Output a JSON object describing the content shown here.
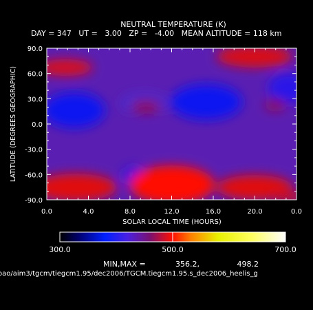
{
  "chart_data": {
    "type": "heatmap",
    "title": "NEUTRAL TEMPERATURE (K)",
    "subtitle": "DAY = 347   UT =   3.00   ZP =   -4.00   MEAN ALTITUDE = 118 km",
    "xlabel": "SOLAR LOCAL TIME (HOURS)",
    "ylabel": "LATITUDE (DEGREES GEOGRAPHIC)",
    "xlim": [
      0,
      24
    ],
    "ylim": [
      -90,
      90
    ],
    "x_tick_labels": [
      "0.0",
      "4.0",
      "8.0",
      "12.0",
      "16.0",
      "20.0",
      "0.0"
    ],
    "y_tick_labels": [
      "90.0",
      "60.0",
      "30.0",
      "0.0",
      "-30.0",
      "-60.0",
      "-90.0"
    ],
    "colorbar": {
      "range": [
        300,
        700
      ],
      "tick_labels": [
        "300.0",
        "500.0",
        "700.0"
      ]
    },
    "minmax_label": "MIN,MAX =",
    "min": "356.2,",
    "max": "498.2",
    "features": [
      {
        "x": 2.5,
        "y": 15,
        "value": 356,
        "kind": "min"
      },
      {
        "x": 15.0,
        "y": 25,
        "value": 358,
        "kind": "min"
      },
      {
        "x": 9.5,
        "y": -70,
        "value": 372,
        "kind": "min"
      },
      {
        "x": 2.0,
        "y": 55,
        "value": 470,
        "kind": "max"
      },
      {
        "x": 21.5,
        "y": 65,
        "value": 470,
        "kind": "max"
      },
      {
        "x": 12.0,
        "y": -65,
        "value": 498,
        "kind": "max"
      },
      {
        "x": 3.0,
        "y": -72,
        "value": 492,
        "kind": "max"
      },
      {
        "x": 20.0,
        "y": -70,
        "value": 490,
        "kind": "max"
      }
    ]
  },
  "footer": {
    "path": "oao/aim3/tgcm/tiegcm1.95/dec2006/TGCM.tiegcm1.95.s_dec2006_heelis_g"
  },
  "colors": {
    "low": "#0a14f0",
    "mid": "#5a1fb2",
    "high": "#ff0a00"
  }
}
